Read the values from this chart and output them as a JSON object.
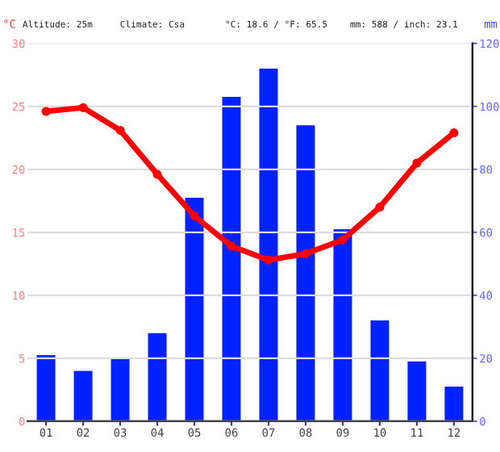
{
  "chart_data": {
    "type": "bar",
    "annotations": [
      "Altitude: 25m",
      "Climate: Csa",
      "°C: 18.6 / °F: 65.5",
      "mm: 588 / inch: 23.1"
    ],
    "ylabel": "°C",
    "y2label": "mm",
    "categories": [
      "01",
      "02",
      "03",
      "04",
      "05",
      "06",
      "07",
      "08",
      "09",
      "10",
      "11",
      "12"
    ],
    "series": [
      {
        "axis": "y2",
        "color": "#0022ff",
        "values": [
          21,
          16,
          20,
          28,
          71,
          103,
          112,
          94,
          61,
          32,
          19,
          11
        ]
      },
      {
        "type": "line",
        "axis": "y",
        "color": "#ff0000",
        "marker": "circle",
        "values": [
          24.6,
          24.9,
          23.1,
          19.6,
          16.3,
          13.9,
          12.8,
          13.3,
          14.4,
          17.0,
          20.5,
          22.9
        ]
      }
    ],
    "ylim": [
      0,
      30
    ],
    "yticks": [
      0,
      5,
      10,
      15,
      20,
      25,
      30
    ],
    "y2lim": [
      0,
      120
    ],
    "y2ticks": [
      0,
      20,
      40,
      60,
      80,
      100,
      120
    ],
    "grid": "y",
    "legend": false
  }
}
